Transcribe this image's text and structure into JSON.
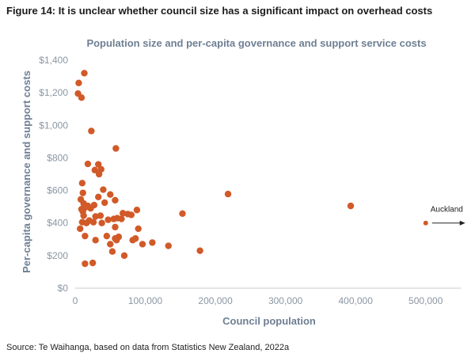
{
  "figure": {
    "title": "Figure 14: It is unclear whether council size has a significant impact on overhead costs",
    "source": "Source: Te Waihanga, based on data from Statistics New Zealand, 2022a"
  },
  "chart_data": {
    "type": "scatter",
    "title": "Population size and per-capita governance and support service costs",
    "xlabel": "Council population",
    "ylabel": "Per-capita governance and support costs",
    "xlim": [
      0,
      550000
    ],
    "ylim": [
      0,
      1400
    ],
    "xticks": [
      0,
      100000,
      200000,
      300000,
      400000,
      500000
    ],
    "xtick_labels": [
      "0",
      "100,000",
      "200,000",
      "300,000",
      "400,000",
      "500,000"
    ],
    "yticks": [
      0,
      200,
      400,
      600,
      800,
      1000,
      1200,
      1400
    ],
    "ytick_labels": [
      "$0",
      "$200",
      "$400",
      "$600",
      "$800",
      "$1,000",
      "$1,200",
      "$1,400"
    ],
    "grid": false,
    "point_color": "#d15a28",
    "points": [
      {
        "x": 13000,
        "y": 1320
      },
      {
        "x": 5000,
        "y": 1260
      },
      {
        "x": 4000,
        "y": 1195
      },
      {
        "x": 9000,
        "y": 1170
      },
      {
        "x": 23000,
        "y": 965
      },
      {
        "x": 58000,
        "y": 858
      },
      {
        "x": 18000,
        "y": 763
      },
      {
        "x": 33000,
        "y": 760
      },
      {
        "x": 28000,
        "y": 725
      },
      {
        "x": 37000,
        "y": 730
      },
      {
        "x": 34000,
        "y": 700
      },
      {
        "x": 10000,
        "y": 645
      },
      {
        "x": 40000,
        "y": 605
      },
      {
        "x": 50000,
        "y": 575
      },
      {
        "x": 11000,
        "y": 585
      },
      {
        "x": 33000,
        "y": 560
      },
      {
        "x": 57000,
        "y": 540
      },
      {
        "x": 8000,
        "y": 545
      },
      {
        "x": 12000,
        "y": 520
      },
      {
        "x": 42000,
        "y": 525
      },
      {
        "x": 27000,
        "y": 510
      },
      {
        "x": 18000,
        "y": 505
      },
      {
        "x": 22000,
        "y": 490
      },
      {
        "x": 14000,
        "y": 495
      },
      {
        "x": 9000,
        "y": 485
      },
      {
        "x": 11000,
        "y": 470
      },
      {
        "x": 36000,
        "y": 445
      },
      {
        "x": 29000,
        "y": 440
      },
      {
        "x": 12000,
        "y": 445
      },
      {
        "x": 68000,
        "y": 460
      },
      {
        "x": 75000,
        "y": 455
      },
      {
        "x": 80000,
        "y": 450
      },
      {
        "x": 88000,
        "y": 480
      },
      {
        "x": 60000,
        "y": 430
      },
      {
        "x": 55000,
        "y": 425
      },
      {
        "x": 66000,
        "y": 425
      },
      {
        "x": 47000,
        "y": 420
      },
      {
        "x": 20000,
        "y": 415
      },
      {
        "x": 10000,
        "y": 405
      },
      {
        "x": 16000,
        "y": 400
      },
      {
        "x": 26000,
        "y": 405
      },
      {
        "x": 38000,
        "y": 400
      },
      {
        "x": 7000,
        "y": 365
      },
      {
        "x": 57000,
        "y": 375
      },
      {
        "x": 90000,
        "y": 365
      },
      {
        "x": 14000,
        "y": 320
      },
      {
        "x": 29000,
        "y": 295
      },
      {
        "x": 45000,
        "y": 320
      },
      {
        "x": 57000,
        "y": 305
      },
      {
        "x": 62000,
        "y": 315
      },
      {
        "x": 59000,
        "y": 295
      },
      {
        "x": 82000,
        "y": 295
      },
      {
        "x": 86000,
        "y": 305
      },
      {
        "x": 96000,
        "y": 270
      },
      {
        "x": 110000,
        "y": 280
      },
      {
        "x": 50000,
        "y": 270
      },
      {
        "x": 133000,
        "y": 260
      },
      {
        "x": 53000,
        "y": 225
      },
      {
        "x": 70000,
        "y": 200
      },
      {
        "x": 178000,
        "y": 230
      },
      {
        "x": 14000,
        "y": 150
      },
      {
        "x": 25000,
        "y": 155
      },
      {
        "x": 153000,
        "y": 458
      },
      {
        "x": 218000,
        "y": 578
      },
      {
        "x": 393000,
        "y": 505
      },
      {
        "x": 500000,
        "y": 400
      }
    ],
    "annotation": {
      "text": "Auckland",
      "x": 500000,
      "y": 400,
      "direction": "right"
    }
  }
}
